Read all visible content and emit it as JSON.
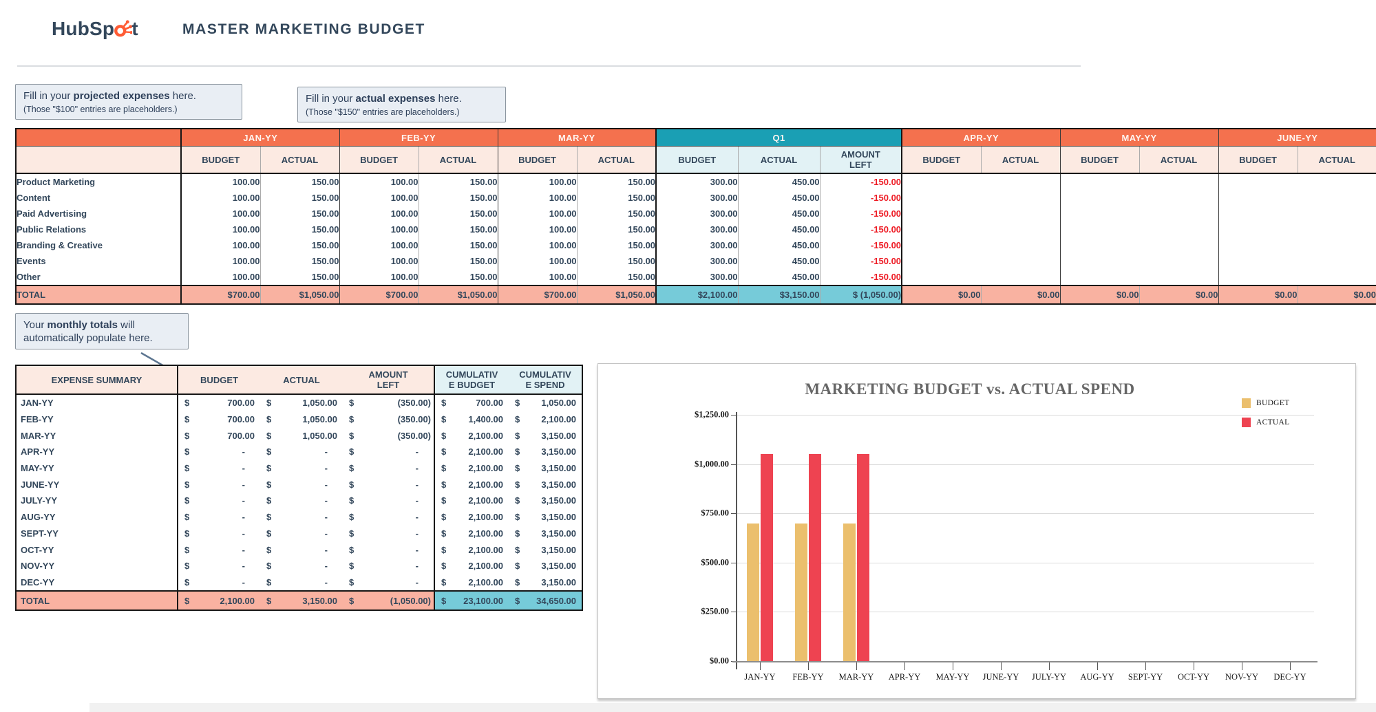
{
  "header": {
    "logo_text": "HubSpot",
    "title": "MASTER MARKETING BUDGET"
  },
  "callouts": {
    "projected": {
      "pre": "Fill in your ",
      "bold": "projected expenses",
      "post": " here.",
      "note": "(Those \"$100\" entries are placeholders.)"
    },
    "actual": {
      "pre": "Fill in your ",
      "bold": "actual expenses",
      "post": " here.",
      "note": "(Those \"$150\" entries are placeholders.)"
    },
    "totals": {
      "pre": "Your ",
      "bold": "monthly totals",
      "post": " will automatically populate here."
    }
  },
  "budget_table": {
    "total_label": "TOTAL",
    "col_budget": "BUDGET",
    "col_actual": "ACTUAL",
    "col_amount_left_line1": "AMOUNT",
    "col_amount_left_line2": "LEFT",
    "categories": [
      "Product Marketing",
      "Content",
      "Paid Advertising",
      "Public Relations",
      "Branding & Creative",
      "Events",
      "Other"
    ],
    "groups": [
      {
        "label": "JAN-YY",
        "kind": "month",
        "budget": "100.00",
        "actual": "150.00",
        "total_budget": "$700.00",
        "total_actual": "$1,050.00"
      },
      {
        "label": "FEB-YY",
        "kind": "month",
        "budget": "100.00",
        "actual": "150.00",
        "total_budget": "$700.00",
        "total_actual": "$1,050.00"
      },
      {
        "label": "MAR-YY",
        "kind": "month",
        "budget": "100.00",
        "actual": "150.00",
        "total_budget": "$700.00",
        "total_actual": "$1,050.00"
      },
      {
        "label": "Q1",
        "kind": "quarter",
        "budget": "300.00",
        "actual": "450.00",
        "amount_left": "-150.00",
        "total_budget": "$2,100.00",
        "total_actual": "$3,150.00",
        "total_left": "$ (1,050.00)"
      },
      {
        "label": "APR-YY",
        "kind": "empty",
        "total_budget": "$0.00",
        "total_actual": "$0.00"
      },
      {
        "label": "MAY-YY",
        "kind": "empty",
        "total_budget": "$0.00",
        "total_actual": "$0.00"
      },
      {
        "label": "JUNE-YY",
        "kind": "empty",
        "total_budget": "$0.00",
        "total_actual": "$0.00"
      }
    ]
  },
  "summary_table": {
    "title": "EXPENSE SUMMARY",
    "headers": {
      "budget": "BUDGET",
      "actual": "ACTUAL",
      "left_line1": "AMOUNT",
      "left_line2": "LEFT",
      "cum_budget_line1": "CUMULATIV",
      "cum_budget_line2": "E BUDGET",
      "cum_spend_line1": "CUMULATIV",
      "cum_spend_line2": "E SPEND"
    },
    "rows": [
      {
        "month": "JAN-YY",
        "budget": "700.00",
        "actual": "1,050.00",
        "left": "(350.00)",
        "cum_budget": "700.00",
        "cum_spend": "1,050.00"
      },
      {
        "month": "FEB-YY",
        "budget": "700.00",
        "actual": "1,050.00",
        "left": "(350.00)",
        "cum_budget": "1,400.00",
        "cum_spend": "2,100.00"
      },
      {
        "month": "MAR-YY",
        "budget": "700.00",
        "actual": "1,050.00",
        "left": "(350.00)",
        "cum_budget": "2,100.00",
        "cum_spend": "3,150.00"
      },
      {
        "month": "APR-YY",
        "budget": "-",
        "actual": "-",
        "left": "-",
        "cum_budget": "2,100.00",
        "cum_spend": "3,150.00"
      },
      {
        "month": "MAY-YY",
        "budget": "-",
        "actual": "-",
        "left": "-",
        "cum_budget": "2,100.00",
        "cum_spend": "3,150.00"
      },
      {
        "month": "JUNE-YY",
        "budget": "-",
        "actual": "-",
        "left": "-",
        "cum_budget": "2,100.00",
        "cum_spend": "3,150.00"
      },
      {
        "month": "JULY-YY",
        "budget": "-",
        "actual": "-",
        "left": "-",
        "cum_budget": "2,100.00",
        "cum_spend": "3,150.00"
      },
      {
        "month": "AUG-YY",
        "budget": "-",
        "actual": "-",
        "left": "-",
        "cum_budget": "2,100.00",
        "cum_spend": "3,150.00"
      },
      {
        "month": "SEPT-YY",
        "budget": "-",
        "actual": "-",
        "left": "-",
        "cum_budget": "2,100.00",
        "cum_spend": "3,150.00"
      },
      {
        "month": "OCT-YY",
        "budget": "-",
        "actual": "-",
        "left": "-",
        "cum_budget": "2,100.00",
        "cum_spend": "3,150.00"
      },
      {
        "month": "NOV-YY",
        "budget": "-",
        "actual": "-",
        "left": "-",
        "cum_budget": "2,100.00",
        "cum_spend": "3,150.00"
      },
      {
        "month": "DEC-YY",
        "budget": "-",
        "actual": "-",
        "left": "-",
        "cum_budget": "2,100.00",
        "cum_spend": "3,150.00"
      }
    ],
    "total": {
      "label": "TOTAL",
      "budget": "2,100.00",
      "actual": "3,150.00",
      "left": "(1,050.00)",
      "cum_budget": "23,100.00",
      "cum_spend": "34,650.00"
    }
  },
  "chart_data": {
    "type": "bar",
    "title": "MARKETING BUDGET vs. ACTUAL SPEND",
    "categories": [
      "JAN-YY",
      "FEB-YY",
      "MAR-YY",
      "APR-YY",
      "MAY-YY",
      "JUNE-YY",
      "JULY-YY",
      "AUG-YY",
      "SEPT-YY",
      "OCT-YY",
      "NOV-YY",
      "DEC-YY"
    ],
    "series": [
      {
        "name": "BUDGET",
        "color": "#EBBF6D",
        "values": [
          700,
          700,
          700,
          0,
          0,
          0,
          0,
          0,
          0,
          0,
          0,
          0
        ]
      },
      {
        "name": "ACTUAL",
        "color": "#EE4351",
        "values": [
          1050,
          1050,
          1050,
          0,
          0,
          0,
          0,
          0,
          0,
          0,
          0,
          0
        ]
      }
    ],
    "ylim": [
      0,
      1250
    ],
    "ytick_labels": [
      "$0.00",
      "$250.00",
      "$500.00",
      "$750.00",
      "$1,000.00",
      "$1,250.00"
    ],
    "grid": true,
    "legend_position": "top-right"
  },
  "colors": {
    "accent_orange": "#F4714E",
    "quarter_teal": "#1A9FB4",
    "total_salmon": "#F9B2A1",
    "subheader_peach": "#FCEAE2",
    "quarter_subheader": "#E2F2F5",
    "quarter_total_teal": "#76CBD9",
    "text_navy": "#33475B",
    "negative_red": "#EE1B24",
    "logo_orange": "#FF5C35"
  }
}
